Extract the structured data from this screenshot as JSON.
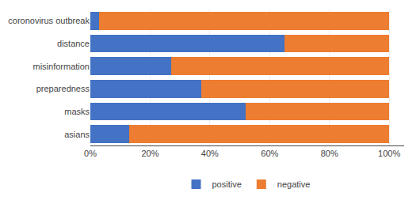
{
  "chart_data": {
    "type": "bar",
    "orientation": "horizontal",
    "stacked": true,
    "categories": [
      "coronovirus outbreak",
      "distance",
      "misinformation",
      "preparedness",
      "masks",
      "asians"
    ],
    "series": [
      {
        "name": "positive",
        "color": "#4472C4",
        "values": [
          3,
          65,
          27,
          37,
          52,
          13
        ]
      },
      {
        "name": "negative",
        "color": "#ED7D31",
        "values": [
          97,
          35,
          73,
          63,
          48,
          87
        ]
      }
    ],
    "xlim": [
      0,
      105
    ],
    "xticks": [
      {
        "value": 0,
        "label": "0%"
      },
      {
        "value": 20,
        "label": "20%"
      },
      {
        "value": 40,
        "label": "40%"
      },
      {
        "value": 60,
        "label": "60%"
      },
      {
        "value": 80,
        "label": "80%"
      },
      {
        "value": 100,
        "label": "100%"
      }
    ],
    "grid": true,
    "legend": "bottom"
  }
}
